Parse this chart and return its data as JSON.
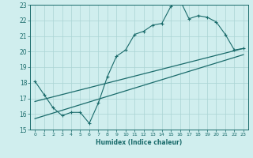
{
  "xlabel": "Humidex (Indice chaleur)",
  "xlim": [
    -0.5,
    23.5
  ],
  "ylim": [
    15,
    23
  ],
  "yticks": [
    15,
    16,
    17,
    18,
    19,
    20,
    21,
    22,
    23
  ],
  "xticks": [
    0,
    1,
    2,
    3,
    4,
    5,
    6,
    7,
    8,
    9,
    10,
    11,
    12,
    13,
    14,
    15,
    16,
    17,
    18,
    19,
    20,
    21,
    22,
    23
  ],
  "xtick_labels": [
    "0",
    "1",
    "2",
    "3",
    "4",
    "5",
    "6",
    "7",
    "8",
    "9",
    "10",
    "11",
    "12",
    "13",
    "14",
    "15",
    "16",
    "17",
    "18",
    "19",
    "20",
    "21",
    "22",
    "23"
  ],
  "background_color": "#d0eeee",
  "grid_color": "#aad4d4",
  "line_color": "#1a6b6b",
  "scatter_x": [
    0,
    1,
    2,
    3,
    4,
    5,
    6,
    7,
    8,
    9,
    10,
    11,
    12,
    13,
    14,
    15,
    16,
    17,
    18,
    19,
    20,
    21,
    22,
    23
  ],
  "scatter_y": [
    18.1,
    17.25,
    16.4,
    15.9,
    16.1,
    16.1,
    15.4,
    16.7,
    18.4,
    19.7,
    20.1,
    21.1,
    21.3,
    21.7,
    21.8,
    22.9,
    23.3,
    22.1,
    22.3,
    22.2,
    21.9,
    21.1,
    20.1,
    20.2
  ],
  "trend1_x": [
    0,
    23
  ],
  "trend1_y": [
    16.8,
    20.2
  ],
  "trend2_x": [
    0,
    23
  ],
  "trend2_y": [
    15.7,
    19.8
  ]
}
